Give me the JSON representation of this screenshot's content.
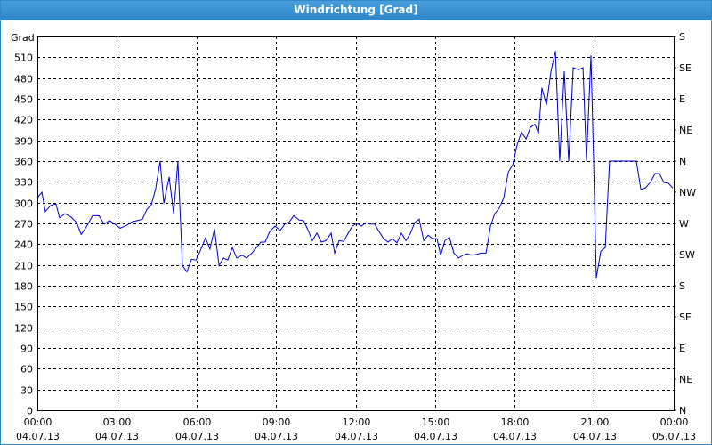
{
  "chart_data": {
    "type": "line",
    "title": "Windrichtung [Grad]",
    "ylabel": "Grad",
    "xlim": [
      0,
      24
    ],
    "xticks": [
      {
        "value": 0,
        "label": "00:00"
      },
      {
        "value": 3,
        "label": "03:00"
      },
      {
        "value": 6,
        "label": "06:00"
      },
      {
        "value": 9,
        "label": "09:00"
      },
      {
        "value": 12,
        "label": "12:00"
      },
      {
        "value": 15,
        "label": "15:00"
      },
      {
        "value": 18,
        "label": "18:00"
      },
      {
        "value": 21,
        "label": "21:00"
      },
      {
        "value": 24,
        "label": "00:00"
      }
    ],
    "x_tick_dates": [
      "04.07.13",
      "04.07.13",
      "04.07.13",
      "04.07.13",
      "04.07.13",
      "04.07.13",
      "04.07.13",
      "04.07.13",
      "05.07.13"
    ],
    "ylim": [
      0,
      540
    ],
    "yticks": [
      0,
      30,
      60,
      90,
      120,
      150,
      180,
      210,
      240,
      270,
      300,
      330,
      360,
      390,
      420,
      450,
      480,
      510
    ],
    "y2lim": [
      0,
      540
    ],
    "y2ticks": [
      {
        "value": 0,
        "label": "N"
      },
      {
        "value": 45,
        "label": "NE"
      },
      {
        "value": 90,
        "label": "E"
      },
      {
        "value": 135,
        "label": "SE"
      },
      {
        "value": 180,
        "label": "S"
      },
      {
        "value": 225,
        "label": "SW"
      },
      {
        "value": 270,
        "label": "W"
      },
      {
        "value": 315,
        "label": "NW"
      },
      {
        "value": 360,
        "label": "N"
      },
      {
        "value": 405,
        "label": "NE"
      },
      {
        "value": 450,
        "label": "E"
      },
      {
        "value": 495,
        "label": "SE"
      },
      {
        "value": 540,
        "label": "S"
      }
    ],
    "grid": true,
    "series": [
      {
        "color": "#0000c8",
        "x": [
          0,
          0.17,
          0.3,
          0.5,
          0.7,
          0.84,
          1.04,
          1.28,
          1.48,
          1.65,
          1.85,
          2.08,
          2.32,
          2.52,
          2.72,
          2.92,
          3.12,
          3.36,
          3.56,
          3.76,
          3.96,
          4.13,
          4.3,
          4.46,
          4.63,
          4.77,
          4.97,
          5.14,
          5.3,
          5.47,
          5.64,
          5.81,
          5.98,
          6.14,
          6.34,
          6.51,
          6.68,
          6.85,
          7.02,
          7.18,
          7.35,
          7.52,
          7.72,
          7.89,
          8.09,
          8.26,
          8.43,
          8.59,
          8.76,
          8.96,
          9.16,
          9.33,
          9.5,
          9.67,
          9.87,
          10.04,
          10.2,
          10.37,
          10.54,
          10.71,
          10.88,
          11.08,
          11.21,
          11.38,
          11.55,
          11.72,
          11.88,
          12.05,
          12.22,
          12.39,
          12.55,
          12.72,
          12.89,
          13.06,
          13.23,
          13.39,
          13.56,
          13.73,
          13.9,
          14.07,
          14.23,
          14.4,
          14.57,
          14.74,
          14.9,
          15.07,
          15.21,
          15.37,
          15.54,
          15.71,
          15.88,
          16.05,
          16.21,
          16.38,
          16.55,
          16.72,
          16.92,
          17.09,
          17.25,
          17.42,
          17.59,
          17.76,
          17.93,
          18.09,
          18.26,
          18.43,
          18.6,
          18.77,
          18.9,
          19.03,
          19.2,
          19.37,
          19.54,
          19.7,
          19.87,
          20.04,
          20.21,
          20.41,
          20.58,
          20.71,
          20.88,
          20.98,
          21.08,
          21.25,
          21.42,
          21.58,
          22.09,
          22.59,
          22.76,
          22.93,
          23.13,
          23.3,
          23.46,
          23.63,
          23.8,
          23.97
        ],
        "values": [
          307,
          315,
          287,
          296,
          298,
          278,
          284,
          279,
          271,
          254,
          265,
          281,
          281,
          269,
          274,
          269,
          263,
          267,
          272,
          274,
          276,
          290,
          297,
          320,
          360,
          299,
          337,
          284,
          360,
          209,
          200,
          218,
          217,
          230,
          249,
          233,
          262,
          209,
          220,
          217,
          235,
          220,
          224,
          220,
          227,
          235,
          243,
          243,
          258,
          266,
          260,
          269,
          272,
          281,
          275,
          274,
          261,
          245,
          256,
          243,
          245,
          256,
          227,
          245,
          244,
          256,
          266,
          270,
          266,
          271,
          269,
          269,
          258,
          248,
          243,
          248,
          242,
          256,
          245,
          256,
          271,
          276,
          245,
          253,
          248,
          248,
          224,
          245,
          250,
          227,
          220,
          224,
          226,
          224,
          225,
          227,
          227,
          266,
          284,
          292,
          307,
          344,
          355,
          383,
          402,
          392,
          409,
          413,
          400,
          466,
          441,
          490,
          519,
          360,
          490,
          360,
          495,
          492,
          495,
          360,
          513,
          361,
          191,
          230,
          235,
          360,
          360,
          360,
          319,
          321,
          330,
          342,
          342,
          329,
          328,
          321
        ]
      }
    ]
  }
}
